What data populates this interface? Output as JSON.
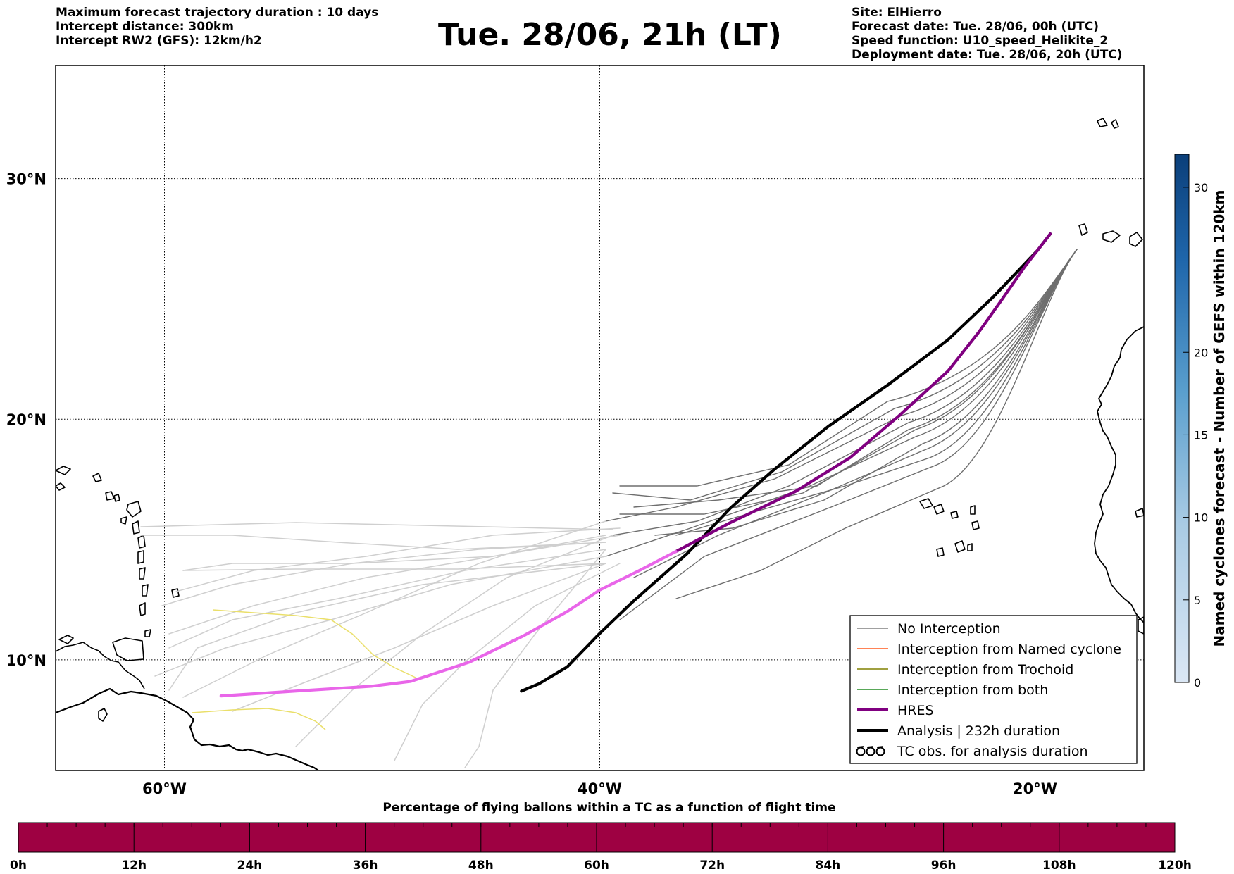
{
  "header": {
    "left_lines": [
      "Maximum forecast trajectory duration : 10 days",
      "Intercept distance: 300km",
      "Intercept RW2 (GFS):  12km/h2"
    ],
    "title": "Tue. 28/06, 21h (LT)",
    "right_lines": [
      "Site: ElHierro",
      "Forecast date: Tue. 28/06, 00h (UTC)",
      "Speed function: U10_speed_Helikite_2",
      "Deployment date: Tue. 28/06, 20h (UTC)"
    ]
  },
  "map": {
    "lon_range": [
      -65,
      -15
    ],
    "lat_range": [
      5.4,
      34.7
    ],
    "lat_labels": [
      {
        "value": 30,
        "label": "30°N"
      },
      {
        "value": 20,
        "label": "20°N"
      },
      {
        "value": 10,
        "label": "10°N"
      }
    ],
    "lon_labels": [
      {
        "value": -60,
        "label": "60°W"
      },
      {
        "value": -40,
        "label": "40°W"
      },
      {
        "value": -20,
        "label": "20°W"
      }
    ],
    "grid": true
  },
  "legend": {
    "items": [
      {
        "label": "No Interception",
        "color": "#808080",
        "style": "thin-line"
      },
      {
        "label": "Interception from Named cyclone",
        "color": "#ff5a1f",
        "style": "thin-line"
      },
      {
        "label": "Interception from Trochoid",
        "color": "#808000",
        "style": "thin-line"
      },
      {
        "label": "Interception from both",
        "color": "#228b22",
        "style": "thin-line"
      },
      {
        "label": "HRES",
        "color": "#800080",
        "style": "thick-line"
      },
      {
        "label": "Analysis | 232h duration",
        "color": "#000000",
        "style": "thick-line"
      },
      {
        "label": "TC obs. for analysis duration",
        "color": "#000000",
        "style": "cyclone-symbols"
      }
    ]
  },
  "colorbar": {
    "title": "Named cyclones forecast - Number of GEFS within 120km",
    "min": 0,
    "max": 32,
    "ticks": [
      0,
      5,
      10,
      15,
      20,
      30
    ],
    "color_low": "#dbe7f5",
    "color_high": "#0b3f7a"
  },
  "bottom_bar": {
    "title": "Percentage of flying ballons within a TC as a function of flight time",
    "color": "#9e0142",
    "tick_labels": [
      "0h",
      "12h",
      "24h",
      "36h",
      "48h",
      "60h",
      "72h",
      "84h",
      "96h",
      "108h",
      "120h"
    ]
  },
  "chart_data": {
    "type": "line",
    "x_unit": "longitude (deg E)",
    "y_unit": "latitude (deg N)",
    "series": [
      {
        "name": "Analysis | 232h duration",
        "color": "#000000",
        "points": [
          [
            -43.6,
            8.7
          ],
          [
            -42.8,
            9.0
          ],
          [
            -41.5,
            9.7
          ],
          [
            -40.0,
            11.1
          ],
          [
            -38.5,
            12.4
          ],
          [
            -36.0,
            14.4
          ],
          [
            -34.0,
            16.3
          ],
          [
            -32.0,
            17.9
          ],
          [
            -29.5,
            19.7
          ],
          [
            -26.8,
            21.4
          ],
          [
            -24.0,
            23.3
          ],
          [
            -21.9,
            25.1
          ],
          [
            -19.9,
            27.0
          ],
          [
            -19.3,
            27.7
          ]
        ]
      },
      {
        "name": "HRES",
        "color": "#800080",
        "points": [
          [
            -36.5,
            14.5
          ],
          [
            -34.0,
            15.7
          ],
          [
            -31.0,
            17.0
          ],
          [
            -28.5,
            18.4
          ],
          [
            -26.3,
            20.1
          ],
          [
            -24.0,
            22.0
          ],
          [
            -22.6,
            23.6
          ],
          [
            -21.5,
            25.0
          ],
          [
            -20.5,
            26.3
          ],
          [
            -19.3,
            27.7
          ]
        ]
      },
      {
        "name": "HRES (beyond forecast range)",
        "color": "#e966e9",
        "points": [
          [
            -57.4,
            8.5
          ],
          [
            -54.0,
            8.7
          ],
          [
            -50.5,
            8.9
          ],
          [
            -48.7,
            9.1
          ],
          [
            -46.0,
            9.9
          ],
          [
            -43.5,
            11.0
          ],
          [
            -41.5,
            12.0
          ],
          [
            -40.0,
            12.9
          ],
          [
            -38.2,
            13.7
          ],
          [
            -36.5,
            14.5
          ]
        ]
      }
    ]
  }
}
